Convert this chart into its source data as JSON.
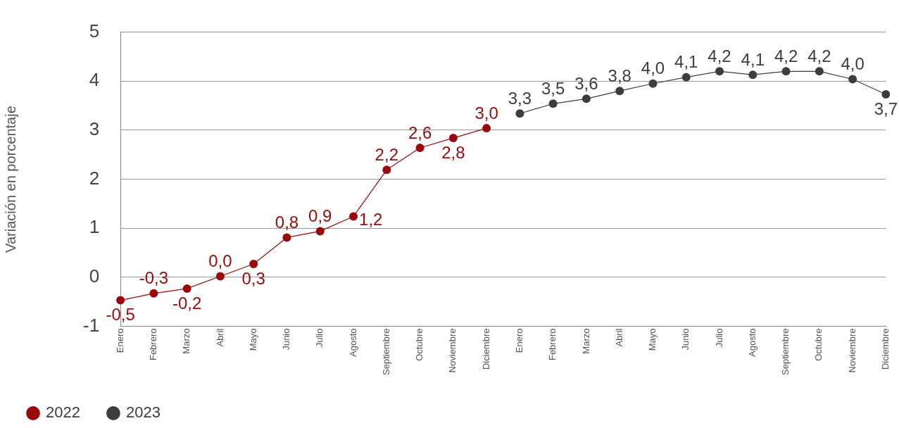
{
  "chart_data": {
    "type": "line",
    "ylabel": "Variación en porcentaje",
    "categories": [
      "Enero",
      "Febrero",
      "Marzo",
      "Abril",
      "Mayo",
      "Junio",
      "Julio",
      "Agosto",
      "Septiembre",
      "Octubre",
      "Noviembre",
      "Diciembre",
      "Enero",
      "Febrero",
      "Marzo",
      "Abril",
      "Mayo",
      "Junio",
      "Julio",
      "Agosto",
      "Septiembre",
      "Octubre",
      "Noviembre",
      "Diciembre"
    ],
    "series": [
      {
        "name": "2022",
        "color": "#9b0a0a",
        "values": [
          -0.47,
          -0.33,
          -0.23,
          0.02,
          0.27,
          0.81,
          0.94,
          1.24,
          2.19,
          2.64,
          2.84,
          3.04,
          null,
          null,
          null,
          null,
          null,
          null,
          null,
          null,
          null,
          null,
          null,
          null
        ],
        "value_labels": [
          "-0,5",
          "-0,3",
          "-0,2",
          "0,0",
          "0,3",
          "0,8",
          "0,9",
          "1,2",
          "2,2",
          "2,6",
          "2,8",
          "3,0",
          null,
          null,
          null,
          null,
          null,
          null,
          null,
          null,
          null,
          null,
          null,
          null
        ]
      },
      {
        "name": "2023",
        "color": "#3d3d3d",
        "values": [
          null,
          null,
          null,
          null,
          null,
          null,
          null,
          null,
          null,
          null,
          null,
          null,
          3.34,
          3.54,
          3.64,
          3.8,
          3.95,
          4.08,
          4.2,
          4.13,
          4.2,
          4.2,
          4.04,
          3.73
        ],
        "value_labels": [
          null,
          null,
          null,
          null,
          null,
          null,
          null,
          null,
          null,
          null,
          null,
          null,
          "3,3",
          "3,5",
          "3,6",
          "3,8",
          "4,0",
          "4,1",
          "4,2",
          "4,1",
          "4,2",
          "4,2",
          "4,0",
          "3,7"
        ]
      }
    ],
    "ylim": [
      -1,
      5
    ],
    "yticks": [
      -1,
      0,
      1,
      2,
      3,
      4,
      5
    ],
    "grid": "y",
    "legend": "bottom left",
    "marker": "circle",
    "line_style": "solid"
  }
}
